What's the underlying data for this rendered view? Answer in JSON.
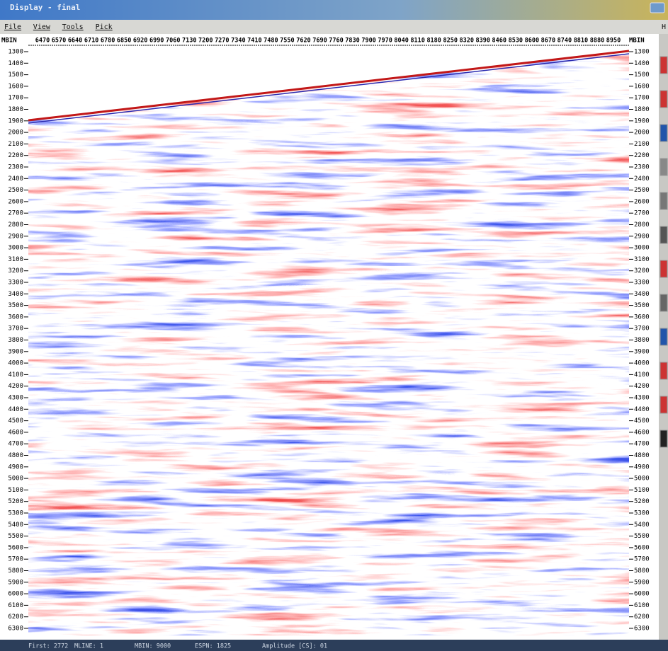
{
  "window": {
    "title": "Display - final",
    "menu": [
      "File",
      "View",
      "Tools",
      "Pick"
    ],
    "help": "H",
    "axis_label": "MBIN",
    "bin_ticks": [
      6470,
      6570,
      6640,
      6710,
      6780,
      6850,
      6920,
      6990,
      7060,
      7130,
      7200,
      7270,
      7340,
      7410,
      7480,
      7550,
      7620,
      7690,
      7760,
      7830,
      7900,
      7970,
      8040,
      8110,
      8180,
      8250,
      8320,
      8390,
      8460,
      8530,
      8600,
      8670,
      8740,
      8810,
      8880,
      8950
    ],
    "depth_ticks": [
      1300,
      1400,
      1500,
      1600,
      1700,
      1800,
      1900,
      2000,
      2100,
      2200,
      2300,
      2400,
      2500,
      2600,
      2700,
      2800,
      2900,
      3000,
      3100,
      3200,
      3300,
      3400,
      3500,
      3600,
      3700,
      3800,
      3900,
      4000,
      4100,
      4200,
      4300,
      4400,
      4500,
      4600,
      4700,
      4800,
      4900,
      5000,
      5100,
      5200,
      5300,
      5400,
      5500,
      5600,
      5700,
      5800,
      5900,
      6000,
      6100,
      6200,
      6300
    ],
    "status": [
      "First: 2772",
      "MLINE: 1",
      "MBIN: 9000",
      "ESPN: 1825",
      "Amplitude [CS]: 01"
    ]
  }
}
